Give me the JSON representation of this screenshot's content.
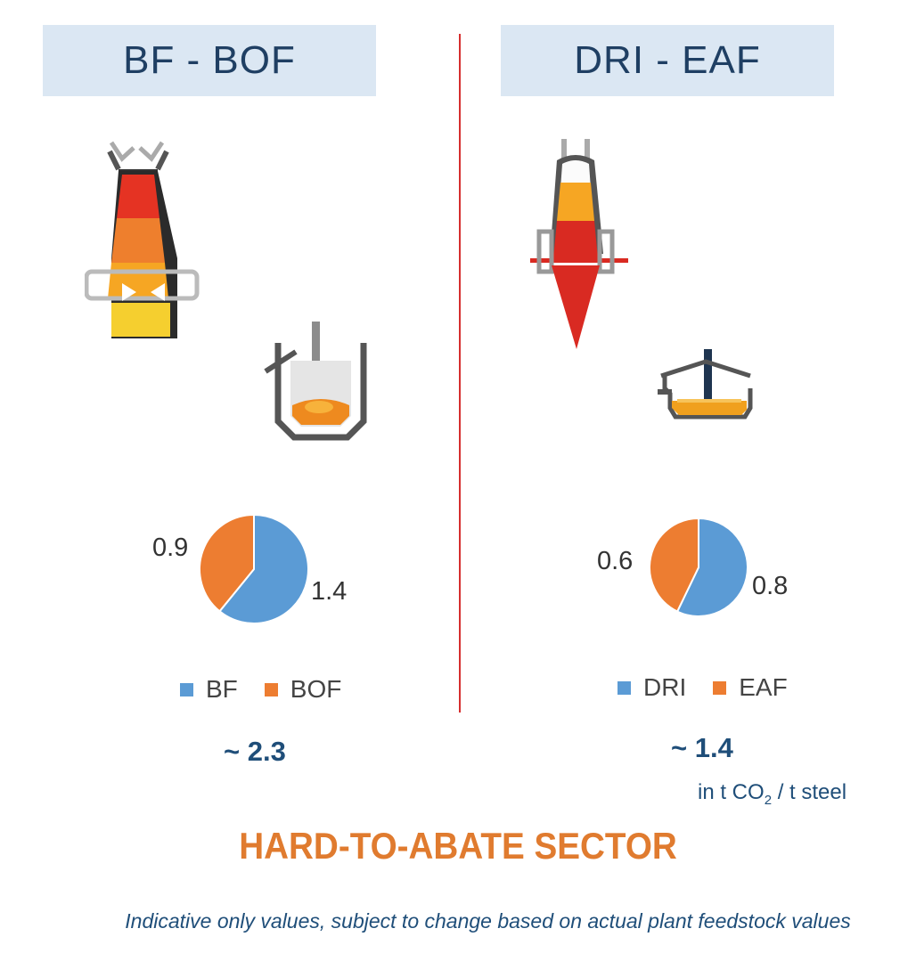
{
  "routes": [
    {
      "header": "BF - BOF",
      "total": "~ 2.3"
    },
    {
      "header": "DRI - EAF",
      "total": "~ 1.4"
    }
  ],
  "unit": {
    "prefix": "in t CO",
    "sub": "2",
    "suffix": " / t steel"
  },
  "title": "HARD-TO-ABATE SECTOR",
  "footnote": "Indicative only values, subject to change based on actual plant feedstock values",
  "colors": {
    "blue": "#5b9bd5",
    "orange": "#ed7d31",
    "header_bg": "#dbe7f3",
    "header_text": "#1f3f63",
    "divider": "#d62e2e",
    "title": "#e07b2f",
    "text_blue": "#1f4e79"
  },
  "icons": [
    "blast-furnace-icon",
    "basic-oxygen-furnace-icon",
    "direct-reduction-shaft-icon",
    "electric-arc-furnace-icon"
  ],
  "chart_data": [
    {
      "type": "pie",
      "labels": [
        "BF",
        "BOF"
      ],
      "values": [
        1.4,
        0.9
      ],
      "value_labels": [
        "1.4",
        "0.9"
      ],
      "colors": [
        "#5b9bd5",
        "#ed7d31"
      ],
      "legend": "bottom"
    },
    {
      "type": "pie",
      "labels": [
        "DRI",
        "EAF"
      ],
      "values": [
        0.8,
        0.6
      ],
      "value_labels": [
        "0.8",
        "0.6"
      ],
      "colors": [
        "#5b9bd5",
        "#ed7d31"
      ],
      "legend": "bottom"
    }
  ]
}
